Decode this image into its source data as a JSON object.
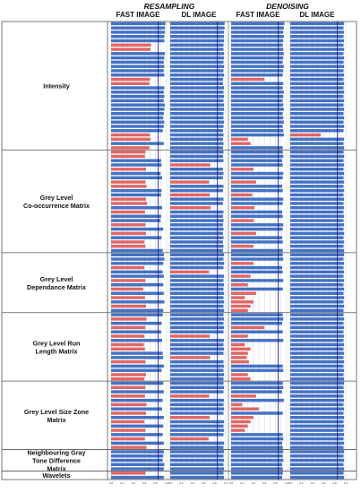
{
  "headers": {
    "resampling": "RESAMPLING",
    "denoising": "DENOISING",
    "panels": [
      "FAST IMAGE",
      "DL IMAGE",
      "FAST IMAGE",
      "DL IMAGE"
    ]
  },
  "colors": {
    "pass": "#4472c4",
    "fail": "#e06666",
    "threshold": "#1a1a8c",
    "grid": "#9aa3b2",
    "border": "#555555"
  },
  "chart_data": {
    "type": "bar",
    "orientation": "horizontal",
    "xlim": [
      0,
      1
    ],
    "xticks": [
      "0.0",
      "0.1",
      "0.2",
      "0.3",
      "0.4",
      "0.5",
      "0.6",
      "0.7",
      "0.8",
      "0.9",
      "1.0"
    ],
    "threshold": 0.85,
    "groups": [
      {
        "name": "Intensity",
        "count": 30
      },
      {
        "name": "Grey Level Co-occurrence Matrix",
        "count": 24
      },
      {
        "name": "Grey Level Dependance Matrix",
        "count": 14
      },
      {
        "name": "Grey Level Run Length Matrix",
        "count": 16
      },
      {
        "name": "Grey Level Size Zone Matrix",
        "count": 16
      },
      {
        "name": "Neighbouring Gray Tone Difference Matrix",
        "count": 5
      },
      {
        "name": "Wavelets",
        "count": 2
      }
    ],
    "series": [
      {
        "values": [
          0.98,
          0.97,
          0.97,
          0.96,
          0.96,
          0.72,
          0.71,
          0.97,
          0.96,
          0.95,
          0.96,
          0.95,
          0.96,
          0.7,
          0.69,
          0.96,
          0.95,
          0.96,
          0.95,
          0.97,
          0.96,
          0.95,
          0.94,
          0.96,
          0.95,
          0.93,
          0.7,
          0.71,
          0.95,
          0.69,
          0.62,
          0.61,
          0.9,
          0.91,
          0.63,
          0.89,
          0.92,
          0.62,
          0.64,
          0.91,
          0.9,
          0.63,
          0.65,
          0.92,
          0.61,
          0.9,
          0.89,
          0.62,
          0.94,
          0.63,
          0.91,
          0.6,
          0.62,
          0.93,
          0.95,
          0.96,
          0.94,
          0.6,
          0.93,
          0.95,
          0.62,
          0.94,
          0.58,
          0.95,
          0.61,
          0.96,
          0.63,
          0.94,
          0.93,
          0.64,
          0.91,
          0.62,
          0.9,
          0.6,
          0.92,
          0.59,
          0.61,
          0.93,
          0.94,
          0.62,
          0.95,
          0.91,
          0.63,
          0.6,
          0.94,
          0.62,
          0.95,
          0.61,
          0.93,
          0.64,
          0.92,
          0.63,
          0.95,
          0.6,
          0.94,
          0.62,
          0.93,
          0.61,
          0.95,
          0.64,
          0.95,
          0.94,
          0.93,
          0.96,
          0.95,
          0.62,
          0.95
        ]
      },
      {
        "values": [
          0.98,
          0.98,
          0.97,
          0.97,
          0.97,
          0.96,
          0.96,
          0.97,
          0.97,
          0.96,
          0.97,
          0.96,
          0.97,
          0.95,
          0.95,
          0.97,
          0.96,
          0.97,
          0.96,
          0.97,
          0.97,
          0.96,
          0.96,
          0.97,
          0.96,
          0.95,
          0.96,
          0.95,
          0.96,
          0.95,
          0.96,
          0.95,
          0.96,
          0.72,
          0.95,
          0.96,
          0.95,
          0.7,
          0.96,
          0.95,
          0.71,
          0.96,
          0.95,
          0.73,
          0.96,
          0.95,
          0.96,
          0.95,
          0.96,
          0.95,
          0.96,
          0.95,
          0.96,
          0.95,
          0.97,
          0.96,
          0.97,
          0.96,
          0.7,
          0.97,
          0.96,
          0.97,
          0.96,
          0.97,
          0.96,
          0.97,
          0.96,
          0.97,
          0.96,
          0.97,
          0.96,
          0.97,
          0.96,
          0.71,
          0.97,
          0.96,
          0.97,
          0.96,
          0.72,
          0.96,
          0.97,
          0.96,
          0.97,
          0.96,
          0.96,
          0.97,
          0.96,
          0.7,
          0.97,
          0.96,
          0.97,
          0.96,
          0.71,
          0.97,
          0.96,
          0.97,
          0.96,
          0.69,
          0.97,
          0.96,
          0.97,
          0.96,
          0.97,
          0.96,
          0.97,
          0.96,
          0.97
        ]
      },
      {
        "values": [
          0.96,
          0.95,
          0.94,
          0.95,
          0.94,
          0.93,
          0.94,
          0.95,
          0.94,
          0.93,
          0.95,
          0.94,
          0.93,
          0.6,
          0.94,
          0.93,
          0.95,
          0.94,
          0.93,
          0.94,
          0.95,
          0.93,
          0.94,
          0.95,
          0.93,
          0.94,
          0.95,
          0.3,
          0.35,
          0.93,
          0.93,
          0.94,
          0.92,
          0.93,
          0.4,
          0.94,
          0.93,
          0.45,
          0.92,
          0.93,
          0.38,
          0.94,
          0.93,
          0.42,
          0.92,
          0.93,
          0.41,
          0.94,
          0.93,
          0.45,
          0.92,
          0.93,
          0.4,
          0.93,
          0.93,
          0.94,
          0.4,
          0.92,
          0.93,
          0.35,
          0.94,
          0.3,
          0.93,
          0.45,
          0.25,
          0.4,
          0.35,
          0.3,
          0.93,
          0.94,
          0.92,
          0.6,
          0.93,
          0.3,
          0.94,
          0.25,
          0.35,
          0.3,
          0.28,
          0.32,
          0.93,
          0.94,
          0.3,
          0.35,
          0.93,
          0.94,
          0.92,
          0.45,
          0.95,
          0.2,
          0.5,
          0.93,
          0.4,
          0.35,
          0.3,
          0.25,
          0.93,
          0.94,
          0.92,
          0.93,
          0.94,
          0.93,
          0.94,
          0.92,
          0.93,
          0.93,
          0.92
        ]
      },
      {
        "values": [
          0.97,
          0.96,
          0.97,
          0.96,
          0.97,
          0.96,
          0.97,
          0.96,
          0.97,
          0.96,
          0.97,
          0.96,
          0.97,
          0.96,
          0.97,
          0.96,
          0.97,
          0.96,
          0.97,
          0.96,
          0.97,
          0.96,
          0.97,
          0.96,
          0.97,
          0.96,
          0.55,
          0.97,
          0.96,
          0.97,
          0.96,
          0.97,
          0.96,
          0.97,
          0.96,
          0.97,
          0.96,
          0.97,
          0.96,
          0.97,
          0.96,
          0.97,
          0.96,
          0.97,
          0.96,
          0.97,
          0.96,
          0.97,
          0.96,
          0.97,
          0.96,
          0.97,
          0.96,
          0.97,
          0.97,
          0.96,
          0.97,
          0.96,
          0.97,
          0.96,
          0.97,
          0.96,
          0.97,
          0.96,
          0.97,
          0.96,
          0.97,
          0.96,
          0.96,
          0.97,
          0.96,
          0.97,
          0.96,
          0.97,
          0.96,
          0.97,
          0.96,
          0.97,
          0.96,
          0.97,
          0.96,
          0.97,
          0.96,
          0.97,
          0.97,
          0.96,
          0.97,
          0.96,
          0.97,
          0.96,
          0.97,
          0.96,
          0.97,
          0.96,
          0.97,
          0.96,
          0.97,
          0.96,
          0.97,
          0.96,
          0.97,
          0.96,
          0.97,
          0.96,
          0.97,
          0.96,
          0.97
        ]
      }
    ]
  }
}
